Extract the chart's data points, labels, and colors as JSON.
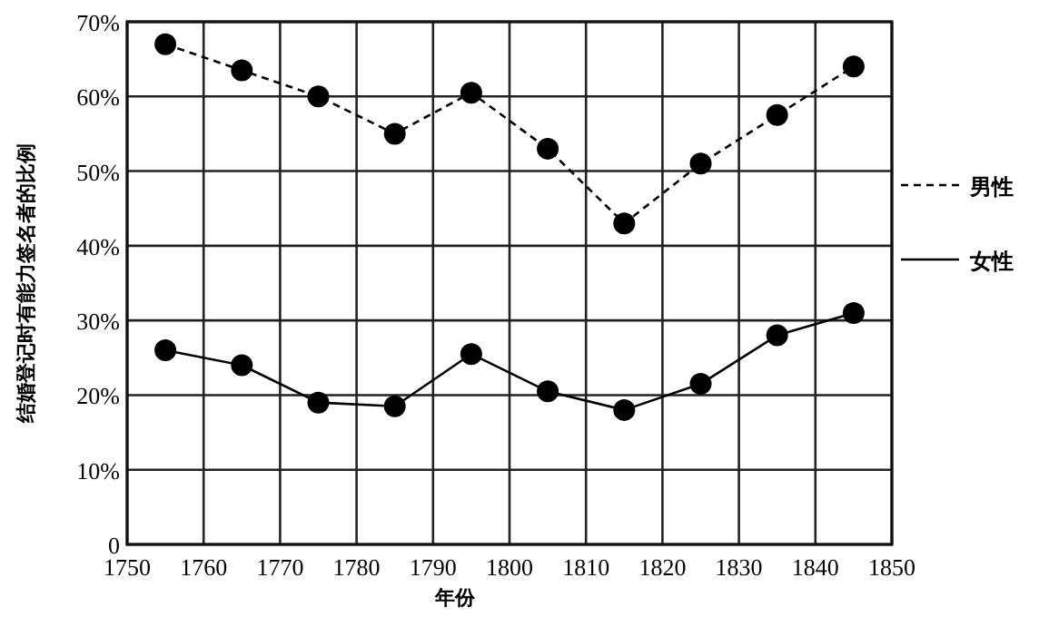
{
  "chart_data": {
    "type": "line",
    "xlabel": "年份",
    "ylabel": "结婚登记时有能力签名者的比例",
    "x": [
      1755,
      1765,
      1775,
      1785,
      1795,
      1805,
      1815,
      1825,
      1835,
      1845
    ],
    "series": [
      {
        "name": "男性",
        "color": "#000000",
        "line_style": "dashed",
        "values": [
          67,
          63.5,
          60,
          55,
          60.5,
          53,
          43,
          51,
          57.5,
          64
        ]
      },
      {
        "name": "女性",
        "color": "#000000",
        "line_style": "solid",
        "values": [
          26,
          24,
          19,
          18.5,
          25.5,
          20.5,
          18,
          21.5,
          28,
          31
        ]
      }
    ],
    "xlim": [
      1750,
      1850
    ],
    "xticks": [
      1750,
      1760,
      1770,
      1780,
      1790,
      1800,
      1810,
      1820,
      1830,
      1840,
      1850
    ],
    "ylim": [
      0,
      70
    ],
    "yticks": [
      {
        "value": 0,
        "label": "0"
      },
      {
        "value": 10,
        "label": "10%"
      },
      {
        "value": 20,
        "label": "20%"
      },
      {
        "value": 30,
        "label": "30%"
      },
      {
        "value": 40,
        "label": "40%"
      },
      {
        "value": 50,
        "label": "50%"
      },
      {
        "value": 60,
        "label": "60%"
      },
      {
        "value": 70,
        "label": "70%"
      }
    ],
    "grid": true,
    "legend": "right",
    "marker": "circle"
  }
}
